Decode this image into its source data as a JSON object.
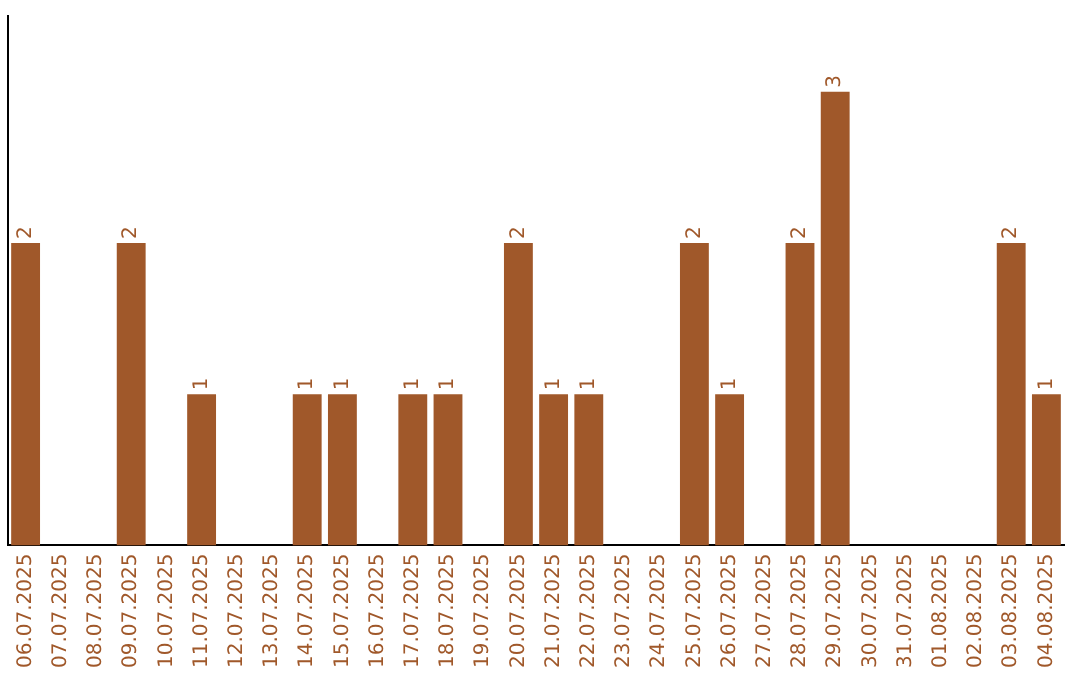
{
  "chart_data": {
    "type": "bar",
    "categories": [
      "06.07.2025",
      "07.07.2025",
      "08.07.2025",
      "09.07.2025",
      "10.07.2025",
      "11.07.2025",
      "12.07.2025",
      "13.07.2025",
      "14.07.2025",
      "15.07.2025",
      "16.07.2025",
      "17.07.2025",
      "18.07.2025",
      "19.07.2025",
      "20.07.2025",
      "21.07.2025",
      "22.07.2025",
      "23.07.2025",
      "24.07.2025",
      "25.07.2025",
      "26.07.2025",
      "27.07.2025",
      "28.07.2025",
      "29.07.2025",
      "30.07.2025",
      "31.07.2025",
      "01.08.2025",
      "02.08.2025",
      "03.08.2025",
      "04.08.2025"
    ],
    "values": [
      2,
      0,
      0,
      2,
      0,
      1,
      0,
      0,
      1,
      1,
      0,
      1,
      1,
      0,
      2,
      1,
      1,
      0,
      0,
      2,
      1,
      0,
      2,
      3,
      0,
      0,
      0,
      0,
      2,
      1
    ],
    "value_labels": [
      "2",
      null,
      null,
      "2",
      null,
      "1",
      null,
      null,
      "1",
      "1",
      null,
      "1",
      "1",
      null,
      "2",
      "1",
      "1",
      null,
      null,
      "2",
      "1",
      null,
      "2",
      "3",
      null,
      null,
      null,
      null,
      "2",
      "1"
    ],
    "color": "#a0582a",
    "tick_labels": "x",
    "grid": false,
    "legend": false
  }
}
